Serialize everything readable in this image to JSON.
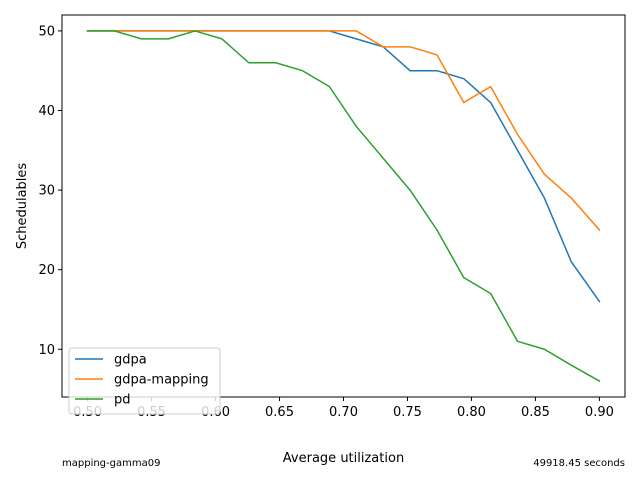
{
  "chart_data": {
    "type": "line",
    "xlabel": "Average utilization",
    "ylabel": "Schedulables",
    "xlim": [
      0.48,
      0.92
    ],
    "ylim": [
      4,
      52
    ],
    "xticks": [
      0.5,
      0.55,
      0.6,
      0.65,
      0.7,
      0.75,
      0.8,
      0.85,
      0.9
    ],
    "xtick_labels": [
      "0.50",
      "0.55",
      "0.60",
      "0.65",
      "0.70",
      "0.75",
      "0.80",
      "0.85",
      "0.90"
    ],
    "yticks": [
      10,
      20,
      30,
      40,
      50
    ],
    "ytick_labels": [
      "10",
      "20",
      "30",
      "40",
      "50"
    ],
    "grid": false,
    "legend_position": "lower-left",
    "x": [
      0.5,
      0.521,
      0.542,
      0.563,
      0.584,
      0.605,
      0.626,
      0.647,
      0.668,
      0.689,
      0.71,
      0.731,
      0.752,
      0.773,
      0.794,
      0.815,
      0.836,
      0.857,
      0.878,
      0.9
    ],
    "series": [
      {
        "name": "gdpa",
        "color": "#1f77b4",
        "values": [
          50,
          50,
          50,
          50,
          50,
          50,
          50,
          50,
          50,
          50,
          49,
          48,
          45,
          45,
          44,
          41,
          35,
          29,
          21,
          16
        ]
      },
      {
        "name": "gdpa-mapping",
        "color": "#ff7f0e",
        "values": [
          50,
          50,
          50,
          50,
          50,
          50,
          50,
          50,
          50,
          50,
          50,
          48,
          48,
          47,
          41,
          43,
          37,
          32,
          29,
          25
        ]
      },
      {
        "name": "pd",
        "color": "#2ca02c",
        "values": [
          50,
          50,
          49,
          49,
          50,
          49,
          46,
          46,
          45,
          43,
          38,
          34,
          30,
          25,
          19,
          17,
          11,
          10,
          8,
          6
        ]
      }
    ],
    "footer_left": "mapping-gamma09",
    "footer_right": "49918.45 seconds"
  }
}
